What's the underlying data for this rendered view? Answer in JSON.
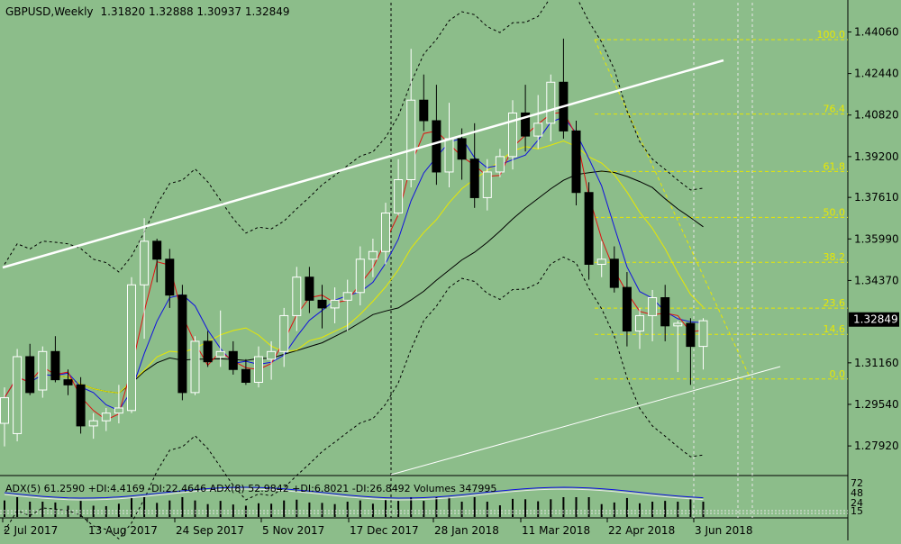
{
  "header": {
    "symbol": "GBPUSD,Weekly",
    "ohlc": "1.31820 1.32888 1.30937 1.32849"
  },
  "indicator_header": {
    "text": "ADX(5) 61.2590 +DI:4.4169 -DI:22.4646  ADX(8) 52.9842 +DI:6.8021 -DI:26.8492  Volumes 347995"
  },
  "chart_data": {
    "type": "candlestick",
    "symbol": "GBPUSD",
    "timeframe": "Weekly",
    "price_range": [
      1.268,
      1.452
    ],
    "price_ticks": [
      "1.44060",
      "1.42440",
      "1.40820",
      "1.39200",
      "1.37610",
      "1.35990",
      "1.34370",
      "1.32849",
      "1.31160",
      "1.29540",
      "1.27920"
    ],
    "current_price": "1.32849",
    "x_labels": [
      "2 Jul 2017",
      "13 Aug 2017",
      "24 Sep 2017",
      "5 Nov 2017",
      "17 Dec 2017",
      "28 Jan 2018",
      "11 Mar 2018",
      "22 Apr 2018",
      "3 Jun 2018"
    ],
    "candles": [
      {
        "o": 1.288,
        "h": 1.302,
        "l": 1.279,
        "c": 1.298
      },
      {
        "o": 1.284,
        "h": 1.317,
        "l": 1.281,
        "c": 1.314
      },
      {
        "o": 1.314,
        "h": 1.319,
        "l": 1.299,
        "c": 1.3
      },
      {
        "o": 1.301,
        "h": 1.318,
        "l": 1.298,
        "c": 1.316
      },
      {
        "o": 1.316,
        "h": 1.322,
        "l": 1.304,
        "c": 1.305
      },
      {
        "o": 1.305,
        "h": 1.309,
        "l": 1.299,
        "c": 1.303
      },
      {
        "o": 1.303,
        "h": 1.306,
        "l": 1.284,
        "c": 1.287
      },
      {
        "o": 1.287,
        "h": 1.292,
        "l": 1.282,
        "c": 1.289
      },
      {
        "o": 1.289,
        "h": 1.294,
        "l": 1.285,
        "c": 1.292
      },
      {
        "o": 1.292,
        "h": 1.303,
        "l": 1.288,
        "c": 1.294
      },
      {
        "o": 1.293,
        "h": 1.345,
        "l": 1.292,
        "c": 1.342
      },
      {
        "o": 1.342,
        "h": 1.368,
        "l": 1.321,
        "c": 1.359
      },
      {
        "o": 1.359,
        "h": 1.36,
        "l": 1.343,
        "c": 1.352
      },
      {
        "o": 1.352,
        "h": 1.356,
        "l": 1.333,
        "c": 1.338
      },
      {
        "o": 1.338,
        "h": 1.342,
        "l": 1.297,
        "c": 1.3
      },
      {
        "o": 1.3,
        "h": 1.322,
        "l": 1.299,
        "c": 1.32
      },
      {
        "o": 1.32,
        "h": 1.324,
        "l": 1.31,
        "c": 1.312
      },
      {
        "o": 1.314,
        "h": 1.332,
        "l": 1.31,
        "c": 1.316
      },
      {
        "o": 1.316,
        "h": 1.32,
        "l": 1.307,
        "c": 1.309
      },
      {
        "o": 1.309,
        "h": 1.313,
        "l": 1.303,
        "c": 1.304
      },
      {
        "o": 1.304,
        "h": 1.318,
        "l": 1.302,
        "c": 1.314
      },
      {
        "o": 1.313,
        "h": 1.32,
        "l": 1.305,
        "c": 1.316
      },
      {
        "o": 1.316,
        "h": 1.333,
        "l": 1.31,
        "c": 1.33
      },
      {
        "o": 1.33,
        "h": 1.349,
        "l": 1.324,
        "c": 1.345
      },
      {
        "o": 1.345,
        "h": 1.349,
        "l": 1.331,
        "c": 1.336
      },
      {
        "o": 1.336,
        "h": 1.342,
        "l": 1.325,
        "c": 1.333
      },
      {
        "o": 1.333,
        "h": 1.341,
        "l": 1.327,
        "c": 1.336
      },
      {
        "o": 1.336,
        "h": 1.344,
        "l": 1.324,
        "c": 1.339
      },
      {
        "o": 1.339,
        "h": 1.357,
        "l": 1.334,
        "c": 1.352
      },
      {
        "o": 1.352,
        "h": 1.36,
        "l": 1.345,
        "c": 1.355
      },
      {
        "o": 1.355,
        "h": 1.374,
        "l": 1.35,
        "c": 1.37
      },
      {
        "o": 1.37,
        "h": 1.391,
        "l": 1.369,
        "c": 1.383
      },
      {
        "o": 1.383,
        "h": 1.434,
        "l": 1.38,
        "c": 1.414
      },
      {
        "o": 1.414,
        "h": 1.424,
        "l": 1.402,
        "c": 1.406
      },
      {
        "o": 1.406,
        "h": 1.42,
        "l": 1.381,
        "c": 1.386
      },
      {
        "o": 1.386,
        "h": 1.413,
        "l": 1.38,
        "c": 1.399
      },
      {
        "o": 1.399,
        "h": 1.403,
        "l": 1.383,
        "c": 1.391
      },
      {
        "o": 1.391,
        "h": 1.405,
        "l": 1.372,
        "c": 1.376
      },
      {
        "o": 1.376,
        "h": 1.391,
        "l": 1.371,
        "c": 1.386
      },
      {
        "o": 1.386,
        "h": 1.395,
        "l": 1.384,
        "c": 1.392
      },
      {
        "o": 1.392,
        "h": 1.414,
        "l": 1.387,
        "c": 1.409
      },
      {
        "o": 1.409,
        "h": 1.42,
        "l": 1.394,
        "c": 1.4
      },
      {
        "o": 1.4,
        "h": 1.416,
        "l": 1.395,
        "c": 1.405
      },
      {
        "o": 1.405,
        "h": 1.424,
        "l": 1.398,
        "c": 1.421
      },
      {
        "o": 1.421,
        "h": 1.438,
        "l": 1.399,
        "c": 1.402
      },
      {
        "o": 1.402,
        "h": 1.406,
        "l": 1.373,
        "c": 1.378
      },
      {
        "o": 1.378,
        "h": 1.382,
        "l": 1.344,
        "c": 1.35
      },
      {
        "o": 1.35,
        "h": 1.359,
        "l": 1.345,
        "c": 1.352
      },
      {
        "o": 1.352,
        "h": 1.357,
        "l": 1.339,
        "c": 1.341
      },
      {
        "o": 1.341,
        "h": 1.347,
        "l": 1.318,
        "c": 1.324
      },
      {
        "o": 1.324,
        "h": 1.333,
        "l": 1.317,
        "c": 1.33
      },
      {
        "o": 1.33,
        "h": 1.34,
        "l": 1.32,
        "c": 1.337
      },
      {
        "o": 1.337,
        "h": 1.342,
        "l": 1.32,
        "c": 1.326
      },
      {
        "o": 1.326,
        "h": 1.328,
        "l": 1.308,
        "c": 1.327
      },
      {
        "o": 1.327,
        "h": 1.329,
        "l": 1.303,
        "c": 1.318
      },
      {
        "o": 1.318,
        "h": 1.329,
        "l": 1.309,
        "c": 1.328
      }
    ],
    "fibonacci": [
      {
        "label": "100.0",
        "price": 1.4376
      },
      {
        "label": "76.4",
        "price": 1.4086
      },
      {
        "label": "61.8",
        "price": 1.3862
      },
      {
        "label": "50.0",
        "price": 1.3683
      },
      {
        "label": "38.2",
        "price": 1.3508
      },
      {
        "label": "23.6",
        "price": 1.3329
      },
      {
        "label": "14.6",
        "price": 1.3227
      },
      {
        "label": "0.0",
        "price": 1.3053
      }
    ],
    "indicator_axis_labels": [
      "72",
      "48",
      "24",
      "15"
    ],
    "colors": {
      "background": "#8cbd8a",
      "bull_candle": "#ffffff",
      "bear_candle": "#000000",
      "ma_fast": "#e01010",
      "ma_mid": "#1010e0",
      "ma_slow": "#e8e800",
      "ma_long": "#000000",
      "fib": "#e8e800",
      "trendline": "#ffffff",
      "current_price_box": "#000000"
    }
  }
}
